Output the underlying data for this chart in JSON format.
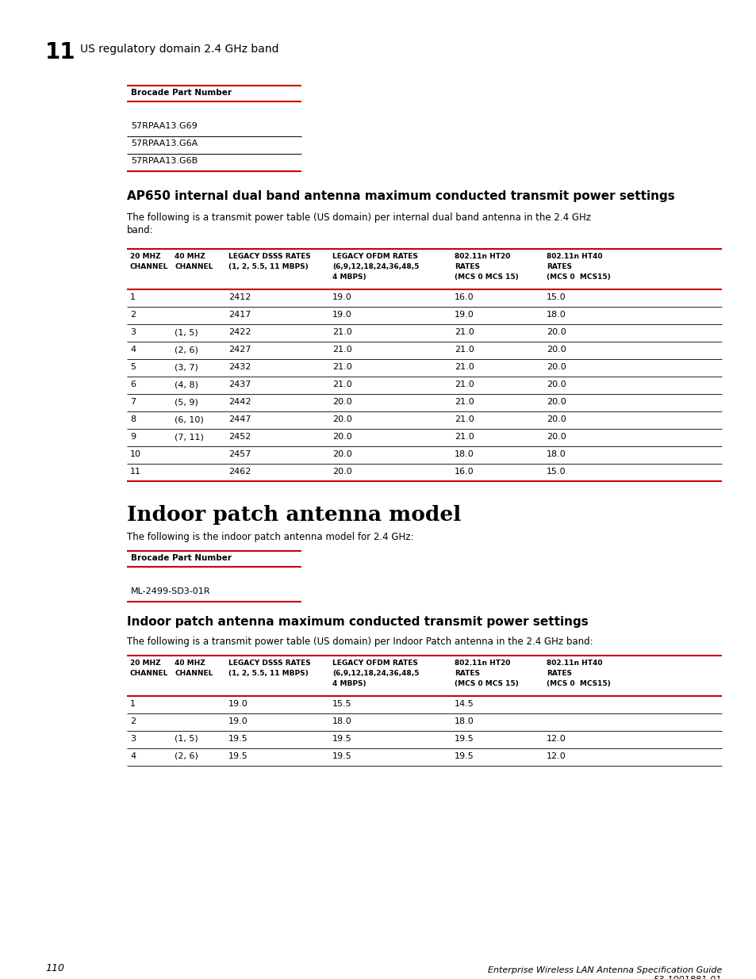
{
  "page_number": "110",
  "chapter_number": "11",
  "chapter_title": "US regulatory domain 2.4 GHz band",
  "section1_title": "AP650 internal dual band antenna maximum conducted transmit power settings",
  "section1_intro": "The following is a transmit power table (US domain) per internal dual band antenna in the 2.4 GHz\nband:",
  "table1_rows": [
    "57RPAA13.G69",
    "57RPAA13.G6A",
    "57RPAA13.G6B"
  ],
  "table2_col_headers": [
    "20 MHZ\nCHANNEL",
    "40 MHZ\nCHANNEL",
    "LEGACY DSSS RATES\n(1, 2, 5.5, 11 MBPS)",
    "LEGACY OFDM RATES\n(6,9,12,18,24,36,48,5\n4 MBPS)",
    "802.11n HT20\nRATES\n(MCS 0 MCS 15)",
    "802.11n HT40\nRATES\n(MCS 0  MCS15)"
  ],
  "table2_rows": [
    [
      "1",
      "",
      "2412",
      "19.0",
      "16.0",
      "15.0"
    ],
    [
      "2",
      "",
      "2417",
      "19.0",
      "19.0",
      "18.0"
    ],
    [
      "3",
      "(1, 5)",
      "2422",
      "21.0",
      "21.0",
      "20.0"
    ],
    [
      "4",
      "(2, 6)",
      "2427",
      "21.0",
      "21.0",
      "20.0"
    ],
    [
      "5",
      "(3, 7)",
      "2432",
      "21.0",
      "21.0",
      "20.0"
    ],
    [
      "6",
      "(4, 8)",
      "2437",
      "21.0",
      "21.0",
      "20.0"
    ],
    [
      "7",
      "(5, 9)",
      "2442",
      "20.0",
      "21.0",
      "20.0"
    ],
    [
      "8",
      "(6, 10)",
      "2447",
      "20.0",
      "21.0",
      "20.0"
    ],
    [
      "9",
      "(7, 11)",
      "2452",
      "20.0",
      "21.0",
      "20.0"
    ],
    [
      "10",
      "",
      "2457",
      "20.0",
      "18.0",
      "18.0"
    ],
    [
      "11",
      "",
      "2462",
      "20.0",
      "16.0",
      "15.0"
    ]
  ],
  "section2_title": "Indoor patch antenna model",
  "section2_intro": "The following is the indoor patch antenna model for 2.4 GHz:",
  "table3_rows": [
    "ML-2499-SD3-01R"
  ],
  "section3_title": "Indoor patch antenna maximum conducted transmit power settings",
  "section3_intro": "The following is a transmit power table (US domain) per Indoor Patch antenna in the 2.4 GHz band:",
  "table4_col_headers": [
    "20 MHZ\nCHANNEL",
    "40 MHZ\nCHANNEL",
    "LEGACY DSSS RATES\n(1, 2, 5.5, 11 MBPS)",
    "LEGACY OFDM RATES\n(6,9,12,18,24,36,48,5\n4 MBPS)",
    "802.11n HT20\nRATES\n(MCS 0 MCS 15)",
    "802.11n HT40\nRATES\n(MCS 0  MCS15)"
  ],
  "table4_rows": [
    [
      "1",
      "",
      "19.0",
      "15.5",
      "14.5",
      ""
    ],
    [
      "2",
      "",
      "19.0",
      "18.0",
      "18.0",
      ""
    ],
    [
      "3",
      "(1, 5)",
      "19.5",
      "19.5",
      "19.5",
      "12.0"
    ],
    [
      "4",
      "(2, 6)",
      "19.5",
      "19.5",
      "19.5",
      "12.0"
    ]
  ],
  "red_color": "#CC0000",
  "black_color": "#000000",
  "bg_color": "#FFFFFF"
}
